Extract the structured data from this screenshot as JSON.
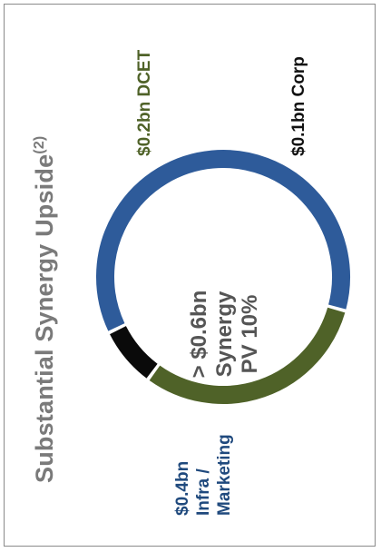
{
  "title": {
    "text": "Substantial Synergy Upside",
    "footnote": "(2)"
  },
  "center_label": {
    "line1": "> $0.6bn",
    "line2": "Synergy",
    "line3": "PV 10%"
  },
  "chart_data": {
    "type": "pie",
    "donut": true,
    "slices": [
      {
        "label": "Infra / Marketing",
        "value": 0.4,
        "value_label": "$0.4bn",
        "color": "#2e5b9a"
      },
      {
        "label": "DCET",
        "value": 0.2,
        "value_label": "$0.2bn",
        "color": "#4f6228"
      },
      {
        "label": "Corp",
        "value": 0.05,
        "value_label": "$0.1bn",
        "color": "#0a0a0a"
      }
    ]
  },
  "labels": {
    "dcet": "$0.2bn DCET",
    "corp": "$0.1bn Corp",
    "infra_line1": "$0.4bn",
    "infra_line2": "Infra /",
    "infra_line3": "Marketing"
  }
}
